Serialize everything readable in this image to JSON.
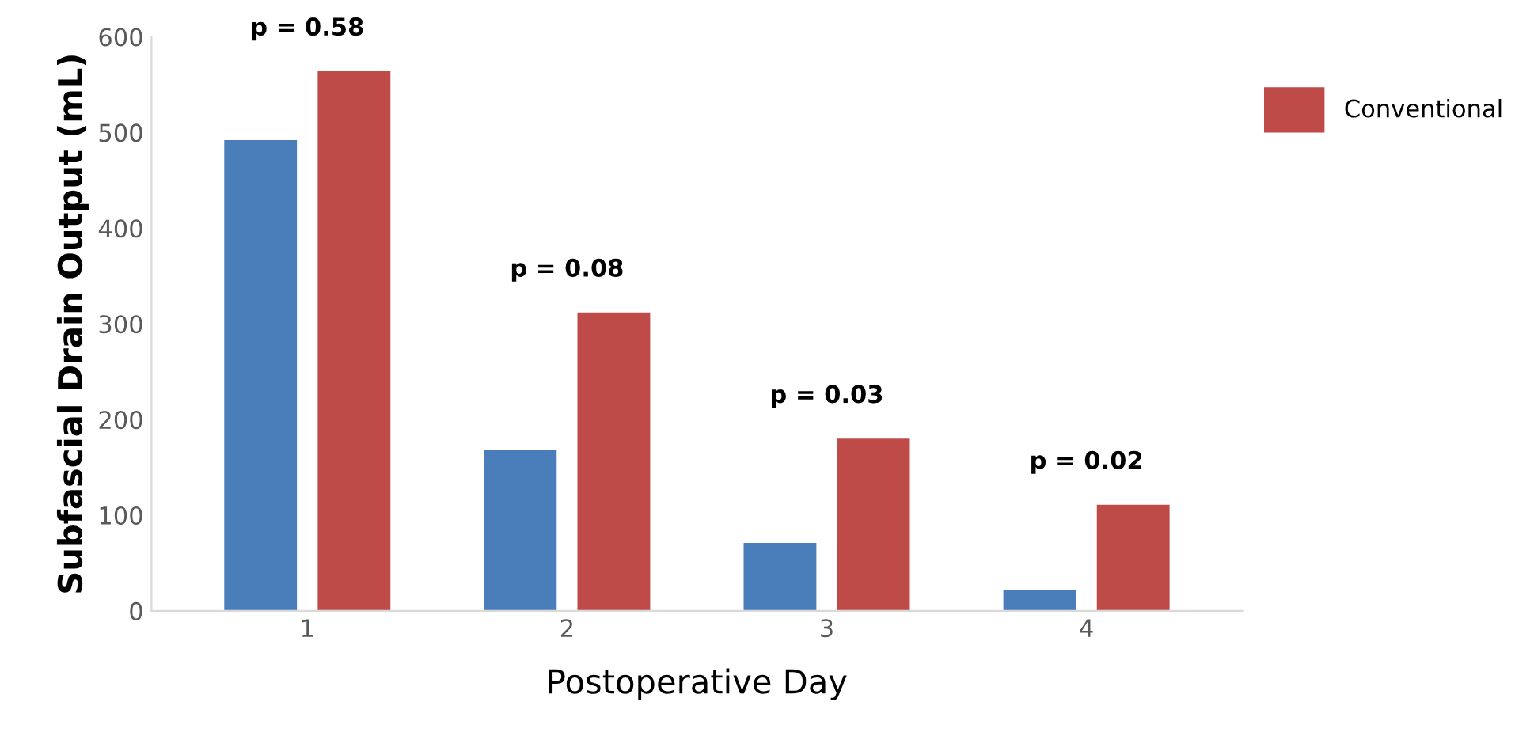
{
  "chart_data": {
    "type": "bar",
    "xlabel": "Postoperative Day",
    "ylabel": "Subfascial Drain Output (mL)",
    "categories": [
      "1",
      "2",
      "3",
      "4"
    ],
    "series": [
      {
        "color": "#4a7ebb",
        "values": [
          492,
          168,
          71,
          22
        ]
      },
      {
        "name": "Conventional",
        "color": "#be4b48",
        "values": [
          564,
          312,
          180,
          111
        ]
      }
    ],
    "ylim": [
      0,
      600
    ],
    "yticks": [
      0,
      100,
      200,
      300,
      400,
      500,
      600
    ],
    "grid": false,
    "legend": "top right",
    "annotations": [
      "p = 0.58",
      "p = 0.08",
      "p = 0.03",
      "p = 0.02"
    ]
  }
}
